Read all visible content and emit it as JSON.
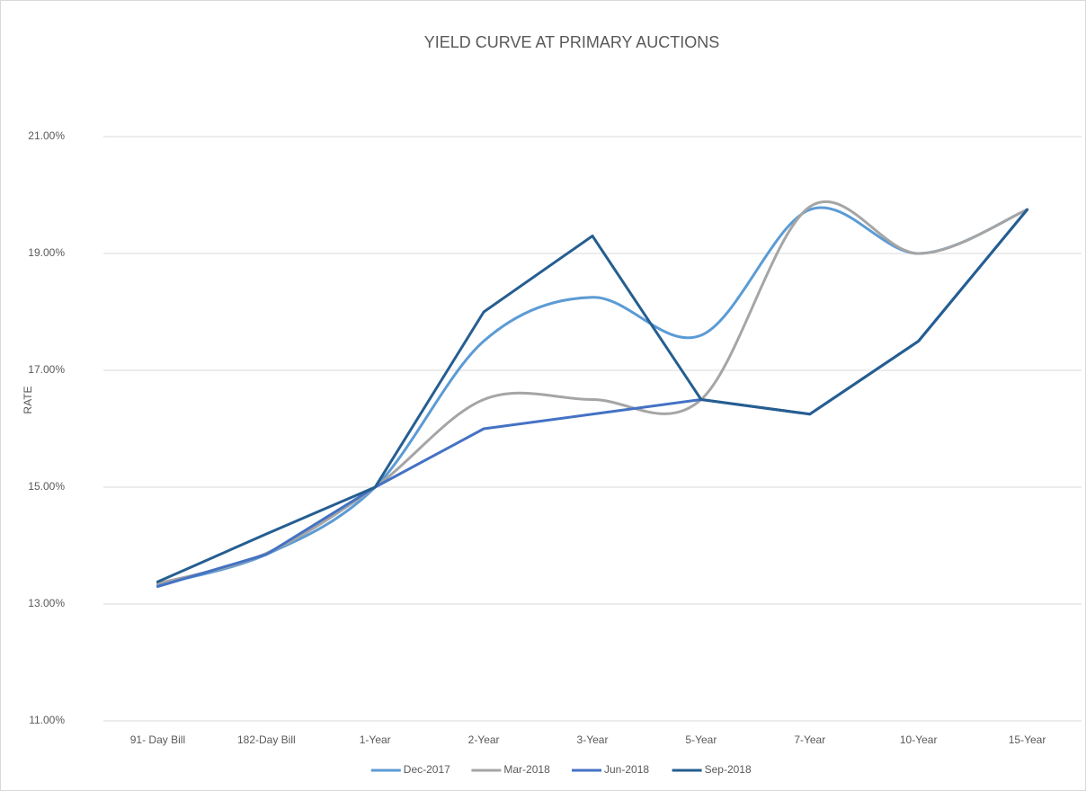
{
  "chart_data": {
    "type": "line",
    "title": "YIELD CURVE AT PRIMARY AUCTIONS",
    "y_label": "RATE",
    "categories": [
      "91- Day Bill",
      "182-Day Bill",
      "1-Year",
      "2-Year",
      "3-Year",
      "5-Year",
      "7-Year",
      "10-Year",
      "15-Year"
    ],
    "series": [
      {
        "name": "Dec-2017",
        "color": "#5b9bd5",
        "smooth": true,
        "values": [
          13.33,
          13.85,
          15.0,
          17.5,
          18.25,
          17.6,
          19.75,
          19.0,
          19.75
        ]
      },
      {
        "name": "Mar-2018",
        "color": "#a5a5a5",
        "smooth": true,
        "values": [
          13.35,
          13.87,
          15.0,
          16.5,
          16.5,
          16.5,
          19.8,
          19.0,
          19.75
        ]
      },
      {
        "name": "Jun-2018",
        "color": "#4472c4",
        "smooth": false,
        "values": [
          13.3,
          13.85,
          15.0,
          16.0,
          16.25,
          16.5,
          16.25,
          17.5,
          19.75
        ]
      },
      {
        "name": "Sep-2018",
        "color": "#255e91",
        "smooth": false,
        "values": [
          13.38,
          14.2,
          15.0,
          18.0,
          19.3,
          16.5,
          16.25,
          17.5,
          19.75
        ]
      }
    ],
    "ylim": [
      11,
      21
    ],
    "yticks": [
      {
        "value": 11,
        "label": "11.00%"
      },
      {
        "value": 13,
        "label": "13.00%"
      },
      {
        "value": 15,
        "label": "15.00%"
      },
      {
        "value": 17,
        "label": "17.00%"
      },
      {
        "value": 19,
        "label": "19.00%"
      },
      {
        "value": 21,
        "label": "21.00%"
      }
    ],
    "grid": true,
    "legend": "bottom"
  }
}
